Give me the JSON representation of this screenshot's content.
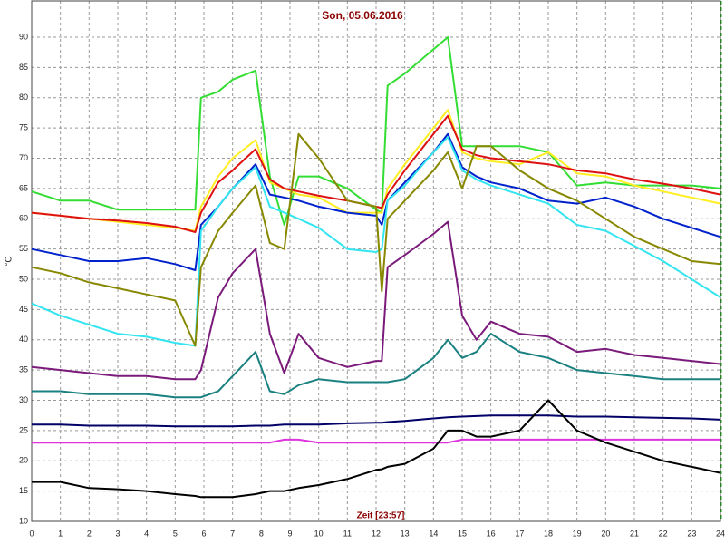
{
  "chart_data": {
    "type": "line",
    "title": "Son, 05.06.2016",
    "x_label": "Zeit [23:57]",
    "y_label": "°C",
    "x": [
      0,
      1,
      2,
      3,
      4,
      5,
      5.7,
      5.9,
      6.5,
      7,
      7.8,
      8.3,
      8.8,
      9.3,
      10,
      11,
      12,
      12.2,
      12.4,
      13,
      14,
      14.5,
      15,
      15.5,
      16,
      17,
      18,
      19,
      20,
      21,
      22,
      23,
      24
    ],
    "series": [
      {
        "color": "#33dd33",
        "values": [
          64.5,
          63,
          63,
          61.5,
          61.5,
          61.5,
          61.5,
          80,
          81,
          83,
          84.5,
          67,
          59,
          67,
          67,
          65,
          61.5,
          61,
          82,
          84,
          88,
          90,
          72,
          72,
          72,
          72,
          71,
          65.5,
          66,
          65.5,
          65.5,
          65.5,
          65
        ]
      },
      {
        "color": "#ffee22",
        "values": [
          61,
          60.5,
          60,
          59.5,
          59,
          58.5,
          58,
          62,
          67,
          70,
          73,
          66,
          65,
          64,
          63.5,
          61,
          61,
          61,
          65,
          69,
          75,
          78,
          71,
          70,
          69.5,
          69,
          71,
          67.5,
          67,
          65.5,
          64.5,
          63.5,
          62.5
        ]
      },
      {
        "color": "#dd1111",
        "values": [
          61,
          60.5,
          60,
          59.7,
          59.3,
          58.7,
          57.8,
          61,
          66,
          68,
          71.5,
          66.5,
          65,
          64.5,
          63.8,
          63,
          62,
          61.8,
          64,
          68,
          74,
          77,
          71.5,
          70.5,
          70,
          69.5,
          69,
          68,
          67.5,
          66.5,
          65.8,
          65,
          64
        ]
      },
      {
        "color": "#0022cc",
        "values": [
          55,
          54,
          53,
          53,
          53.5,
          52.5,
          51.5,
          59,
          62,
          65,
          69,
          64,
          63.5,
          63,
          62,
          61,
          60.5,
          59,
          63,
          66,
          71,
          74,
          68.5,
          67,
          66,
          65,
          63,
          62.5,
          63.5,
          62,
          60,
          58.5,
          57
        ]
      },
      {
        "color": "#33e5f0",
        "values": [
          46,
          44,
          42.5,
          41,
          40.5,
          39.5,
          39,
          58,
          62,
          65,
          68.5,
          62,
          61,
          60,
          58.5,
          55,
          54.5,
          55,
          63,
          65.5,
          71,
          73.5,
          68,
          66.5,
          65.5,
          64,
          62.5,
          59,
          58,
          55.5,
          53,
          50,
          47
        ]
      },
      {
        "color": "#888800",
        "values": [
          52,
          51,
          49.5,
          48.5,
          47.5,
          46.5,
          39,
          52,
          58,
          61,
          65.5,
          56,
          55,
          74,
          70,
          63,
          62,
          48,
          60,
          63,
          68,
          71,
          65,
          72,
          72,
          68,
          65,
          63,
          60,
          57,
          55,
          53,
          52.5
        ]
      },
      {
        "color": "#7a1a7a",
        "values": [
          35.5,
          35,
          34.5,
          34,
          34,
          33.5,
          33.5,
          35,
          47,
          51,
          55,
          41,
          34.5,
          41,
          37,
          35.5,
          36.5,
          36.5,
          52,
          54,
          57.5,
          59.5,
          44,
          40,
          43,
          41,
          40.5,
          38,
          38.5,
          37.5,
          37,
          36.5,
          36
        ]
      },
      {
        "color": "#1a8080",
        "values": [
          31.5,
          31.5,
          31,
          31,
          31,
          30.5,
          30.5,
          30.5,
          31.5,
          34,
          38,
          31.5,
          31,
          32.5,
          33.5,
          33,
          33,
          33,
          33,
          33.5,
          37,
          40,
          37,
          38,
          41,
          38,
          37,
          35,
          34.5,
          34,
          33.5,
          33.5,
          33.5
        ]
      },
      {
        "color": "#000066",
        "values": [
          26,
          26,
          25.8,
          25.8,
          25.8,
          25.7,
          25.7,
          25.7,
          25.7,
          25.7,
          25.8,
          25.8,
          26,
          26,
          26,
          26.2,
          26.3,
          26.3,
          26.4,
          26.6,
          27,
          27.2,
          27.3,
          27.4,
          27.5,
          27.5,
          27.5,
          27.3,
          27.3,
          27.2,
          27.1,
          27,
          26.8
        ]
      },
      {
        "color": "#dd33dd",
        "values": [
          23,
          23,
          23,
          23,
          23,
          23,
          23,
          23,
          23,
          23,
          23,
          23,
          23.5,
          23.5,
          23,
          23,
          23,
          23,
          23,
          23,
          23,
          23,
          23.5,
          23.5,
          23.5,
          23.5,
          23.5,
          23.5,
          23.5,
          23.5,
          23.5,
          23.5,
          23.5
        ]
      },
      {
        "color": "#000000",
        "values": [
          16.5,
          16.5,
          15.5,
          15.3,
          15,
          14.5,
          14.2,
          14,
          14,
          14,
          14.5,
          15,
          15,
          15.5,
          16,
          17,
          18.5,
          18.6,
          19,
          19.5,
          22,
          25,
          25,
          24,
          24,
          25,
          30,
          25,
          23,
          21.5,
          20,
          19,
          18
        ]
      }
    ],
    "xlim": [
      0,
      24
    ],
    "xticks": [
      0,
      1,
      2,
      3,
      4,
      5,
      6,
      7,
      8,
      9,
      10,
      11,
      12,
      13,
      14,
      15,
      16,
      17,
      18,
      19,
      20,
      21,
      22,
      23,
      24
    ],
    "ylim": [
      10,
      96
    ],
    "yticks": [
      10,
      15,
      20,
      25,
      30,
      35,
      40,
      45,
      50,
      55,
      60,
      65,
      70,
      75,
      80,
      85,
      90
    ],
    "grid": true
  }
}
